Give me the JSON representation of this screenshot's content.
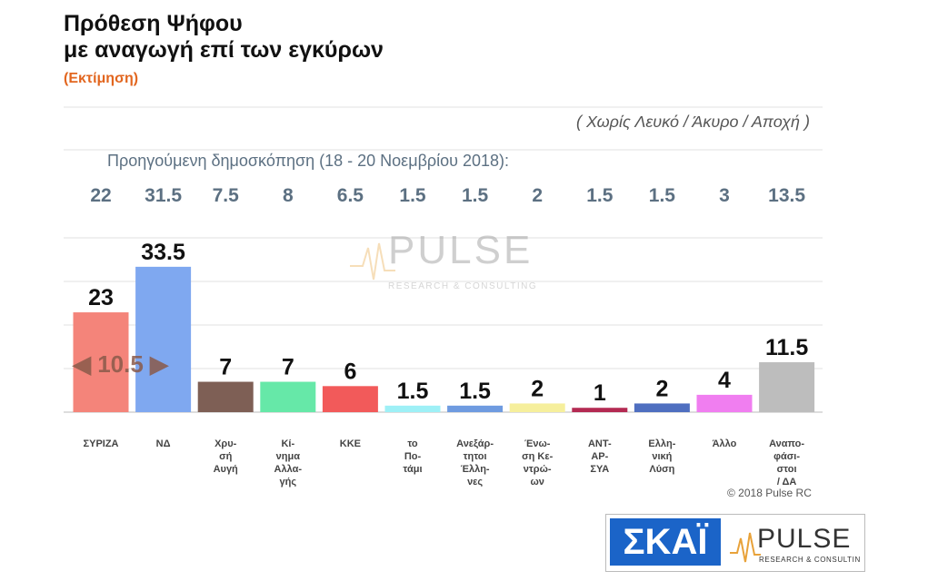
{
  "header": {
    "title_line1": "Πρόθεση Ψήφου",
    "title_line2": "με αναγωγή επί των εγκύρων",
    "subtitle": "(Εκτίμηση)",
    "note": "( Χωρίς Λευκό / Άκυρο / Αποχή )"
  },
  "previous_poll": {
    "label": "Προηγούμενη δημοσκόπηση (18 - 20 Νοεμβρίου 2018):",
    "values": [
      "22",
      "31.5",
      "7.5",
      "8",
      "6.5",
      "1.5",
      "1.5",
      "2",
      "1.5",
      "1.5",
      "3",
      "13.5"
    ]
  },
  "difference_label": "◀ 10.5 ▶",
  "watermark": {
    "brand": "PULSE",
    "sub": "RESEARCH & CONSULTING"
  },
  "copyright": "© 2018 Pulse RC",
  "logos": {
    "skai": "ΣΚΑΪ",
    "pulse": "PULSE",
    "pulse_sub": "RESEARCH & CONSULTING"
  },
  "chart_data": {
    "type": "bar",
    "categories": [
      "ΣΥΡΙΖΑ",
      "ΝΔ",
      "Χρυ-\nσή\nΑυγή",
      "Κί-\nνημα\nΑλλα-\nγής",
      "ΚΚΕ",
      "το\nΠο-\nτάμι",
      "Ανεξάρ-\nτητοι\nΈλλη-\nνες",
      "Ένω-\nση Κε-\nντρώ-\nων",
      "ΑΝΤ-\nΑΡ-\nΣΥΑ",
      "Ελλη-\nνική\nΛύση",
      "Άλλο",
      "Αναπο-\nφάσι-\nστοι\n/ ΔΑ"
    ],
    "values": [
      23,
      33.5,
      7,
      7,
      6,
      1.5,
      1.5,
      2,
      1,
      2,
      4,
      11.5
    ],
    "value_labels": [
      "23",
      "33.5",
      "7",
      "7",
      "6",
      "1.5",
      "1.5",
      "2",
      "1",
      "2",
      "4",
      "11.5"
    ],
    "colors": [
      "#f4847a",
      "#7fa8f0",
      "#7e5f55",
      "#66e8a8",
      "#f25a5a",
      "#9ef0f6",
      "#6f9be0",
      "#f6ef9c",
      "#b42a52",
      "#4f6fc0",
      "#f07ef0",
      "#bdbdbd"
    ],
    "ylim": [
      0,
      40
    ],
    "grid": true
  }
}
